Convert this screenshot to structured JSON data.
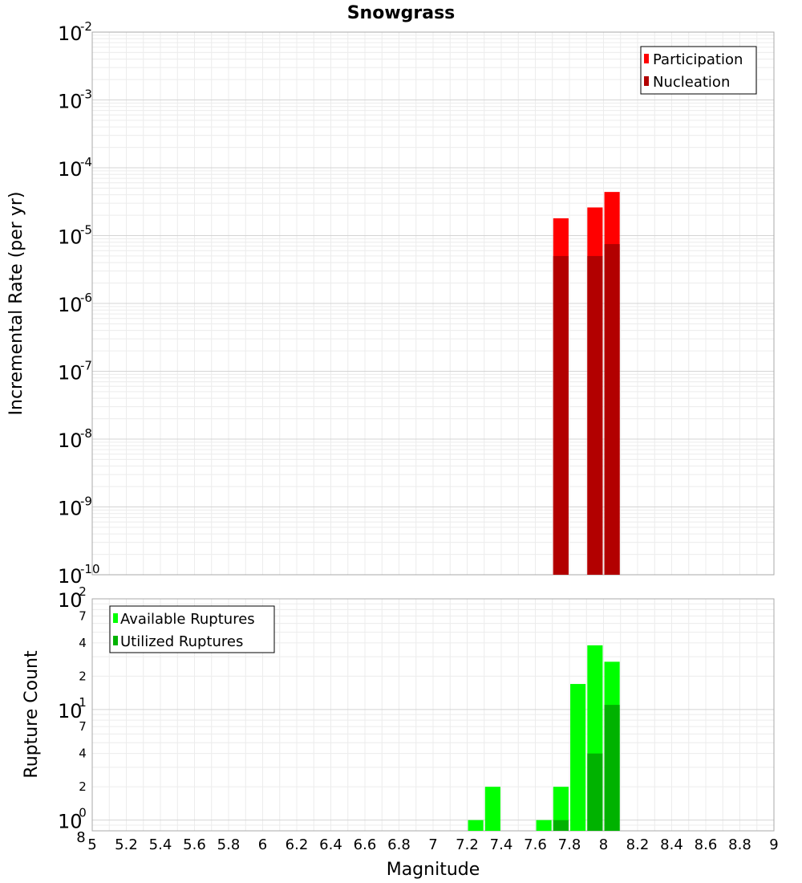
{
  "chart_data": [
    {
      "panel": "top",
      "type": "bar",
      "title": "Snowgrass",
      "ylabel": "Incremental Rate (per yr)",
      "y_scale": "log",
      "ylim": [
        1e-10,
        0.01
      ],
      "y_tick_labels": [
        {
          "base": "10",
          "exp": "-10"
        },
        {
          "base": "10",
          "exp": "-9"
        },
        {
          "base": "10",
          "exp": "-8"
        },
        {
          "base": "10",
          "exp": "-7"
        },
        {
          "base": "10",
          "exp": "-6"
        },
        {
          "base": "10",
          "exp": "-5"
        },
        {
          "base": "10",
          "exp": "-4"
        },
        {
          "base": "10",
          "exp": "-3"
        },
        {
          "base": "10",
          "exp": "-2"
        }
      ],
      "grid": true,
      "legend_position": "top-right",
      "series": [
        {
          "name": "Participation",
          "color": "#ff0000",
          "x": [
            7.75,
            7.95,
            8.05
          ],
          "values": [
            1.8e-05,
            2.6e-05,
            4.4e-05
          ]
        },
        {
          "name": "Nucleation",
          "color": "#b20000",
          "x": [
            7.75,
            7.95,
            8.05
          ],
          "values": [
            5e-06,
            5e-06,
            7.5e-06
          ]
        }
      ]
    },
    {
      "panel": "bottom",
      "type": "bar",
      "xlabel": "Magnitude",
      "ylabel": "Rupture Count",
      "y_scale": "log",
      "ylim": [
        0.8,
        100
      ],
      "xlim": [
        5,
        9
      ],
      "x_ticks": [
        "5",
        "5.2",
        "5.4",
        "5.6",
        "5.8",
        "6",
        "6.2",
        "6.4",
        "6.6",
        "6.8",
        "7",
        "7.2",
        "7.4",
        "7.6",
        "7.8",
        "8",
        "8.2",
        "8.4",
        "8.6",
        "8.8",
        "9"
      ],
      "y_tick_labels": [
        {
          "base": "10",
          "exp": "0"
        },
        {
          "base": "10",
          "exp": "1"
        },
        {
          "base": "10",
          "exp": "2"
        }
      ],
      "y_minor_tick_labels": [
        {
          "label": "8",
          "value": 0.8
        },
        {
          "label": "2",
          "value": 2
        },
        {
          "label": "4",
          "value": 4
        },
        {
          "label": "7",
          "value": 7
        },
        {
          "label": "2",
          "value": 20
        },
        {
          "label": "4",
          "value": 40
        },
        {
          "label": "7",
          "value": 70
        }
      ],
      "grid": true,
      "legend_position": "top-left",
      "series": [
        {
          "name": "Available Ruptures",
          "color": "#00ff00",
          "x": [
            7.25,
            7.35,
            7.65,
            7.75,
            7.85,
            7.95,
            8.05
          ],
          "values": [
            1,
            2,
            1,
            2,
            17,
            38,
            27
          ]
        },
        {
          "name": "Utilized Ruptures",
          "color": "#00b200",
          "x": [
            7.75,
            7.95,
            8.05
          ],
          "values": [
            1,
            4,
            11
          ]
        }
      ]
    }
  ]
}
